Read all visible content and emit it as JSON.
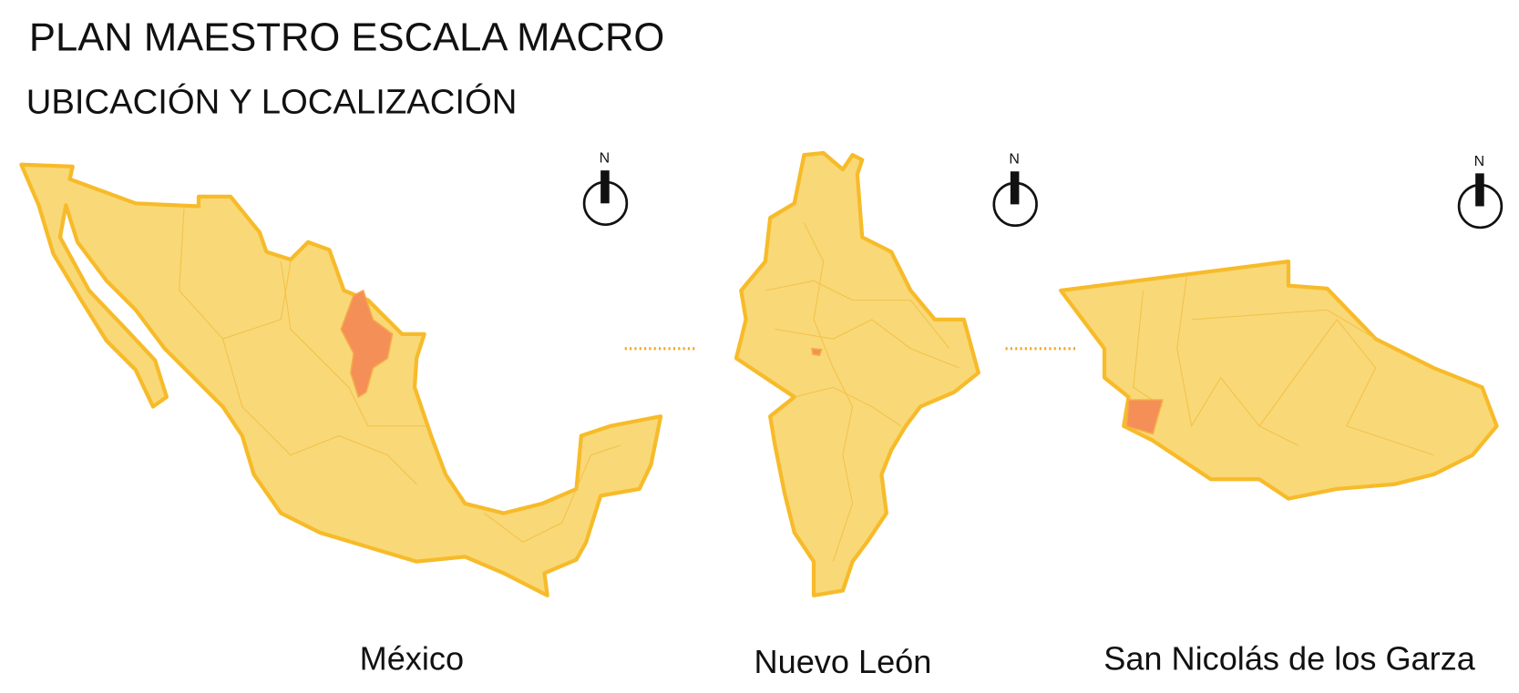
{
  "header": {
    "title": "PLAN MAESTRO ESCALA MACRO",
    "subtitle": "UBICACIÓN Y LOCALIZACIÓN"
  },
  "maps": [
    {
      "label": "México",
      "north": "N"
    },
    {
      "label": "Nuevo León",
      "north": "N"
    },
    {
      "label": "San Nicolás de los Garza",
      "north": "N"
    }
  ]
}
